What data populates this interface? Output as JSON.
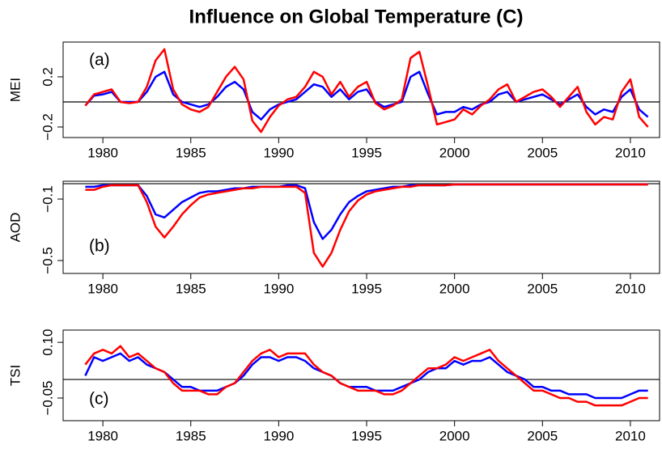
{
  "title": "Influence on Global Temperature (C)",
  "chart_data": [
    {
      "type": "line",
      "ylabel": "MEI",
      "annotation": "(a)",
      "x": [
        1979,
        1979.5,
        1980,
        1980.5,
        1981,
        1981.5,
        1982,
        1982.5,
        1983,
        1983.5,
        1984,
        1984.5,
        1985,
        1985.5,
        1986,
        1986.5,
        1987,
        1987.5,
        1988,
        1988.5,
        1989,
        1989.5,
        1990,
        1990.5,
        1991,
        1991.5,
        1992,
        1992.5,
        1993,
        1993.5,
        1994,
        1994.5,
        1995,
        1995.5,
        1996,
        1996.5,
        1997,
        1997.5,
        1998,
        1998.5,
        1999,
        1999.5,
        2000,
        2000.5,
        2001,
        2001.5,
        2002,
        2002.5,
        2003,
        2003.5,
        2004,
        2004.5,
        2005,
        2005.5,
        2006,
        2006.5,
        2007,
        2007.5,
        2008,
        2008.5,
        2009,
        2009.5,
        2010,
        2010.5,
        2011
      ],
      "series": [
        {
          "color": "#0000ff",
          "values": [
            -0.03,
            0.05,
            0.06,
            0.08,
            0,
            0,
            0,
            0.08,
            0.2,
            0.24,
            0.06,
            0,
            -0.02,
            -0.04,
            -0.02,
            0.04,
            0.12,
            0.16,
            0.1,
            -0.08,
            -0.14,
            -0.06,
            -0.02,
            0,
            0.02,
            0.08,
            0.14,
            0.12,
            0.04,
            0.1,
            0.02,
            0.08,
            0.1,
            0,
            -0.04,
            -0.02,
            0,
            0.2,
            0.24,
            0.06,
            -0.1,
            -0.08,
            -0.08,
            -0.04,
            -0.06,
            -0.02,
            0,
            0.06,
            0.08,
            0,
            0.02,
            0.04,
            0.06,
            0.02,
            -0.02,
            0.02,
            0.06,
            -0.04,
            -0.1,
            -0.06,
            -0.08,
            0.04,
            0.1,
            -0.06,
            -0.12
          ]
        },
        {
          "color": "#ff0000",
          "values": [
            -0.03,
            0.06,
            0.08,
            0.1,
            0,
            -0.01,
            0,
            0.12,
            0.33,
            0.42,
            0.1,
            -0.02,
            -0.06,
            -0.08,
            -0.04,
            0.08,
            0.2,
            0.28,
            0.18,
            -0.15,
            -0.24,
            -0.12,
            -0.03,
            0.02,
            0.04,
            0.12,
            0.24,
            0.2,
            0.06,
            0.16,
            0.04,
            0.12,
            0.16,
            -0.01,
            -0.06,
            -0.03,
            0.02,
            0.35,
            0.4,
            0.12,
            -0.18,
            -0.16,
            -0.14,
            -0.06,
            -0.1,
            -0.03,
            0.02,
            0.1,
            0.14,
            0,
            0.04,
            0.08,
            0.1,
            0.04,
            -0.04,
            0.04,
            0.12,
            -0.08,
            -0.18,
            -0.12,
            -0.14,
            0.08,
            0.18,
            -0.12,
            -0.2
          ]
        }
      ],
      "xlim": [
        1977.74,
        2011.66
      ],
      "xticks": [
        1980,
        1985,
        1990,
        1995,
        2000,
        2005,
        2010
      ],
      "ylim": [
        -0.284,
        0.477
      ],
      "yticks": [
        {
          "value": -0.2,
          "label": "−0.2"
        },
        0.2
      ]
    },
    {
      "type": "line",
      "ylabel": "AOD",
      "annotation": "(b)",
      "x": [
        1979,
        1979.5,
        1980,
        1980.5,
        1981,
        1981.5,
        1982,
        1982.5,
        1983,
        1983.5,
        1984,
        1984.5,
        1985,
        1985.5,
        1986,
        1986.5,
        1987,
        1987.5,
        1988,
        1988.5,
        1989,
        1989.5,
        1990,
        1990.5,
        1991,
        1991.5,
        1992,
        1992.5,
        1993,
        1993.5,
        1994,
        1994.5,
        1995,
        1995.5,
        1996,
        1996.5,
        1997,
        1997.5,
        1998,
        1998.5,
        1999,
        1999.5,
        2000,
        2000.5,
        2001,
        2001.5,
        2002,
        2002.5,
        2003,
        2003.5,
        2004,
        2004.5,
        2005,
        2005.5,
        2006,
        2006.5,
        2007,
        2007.5,
        2008,
        2008.5,
        2009,
        2009.5,
        2010,
        2010.5,
        2011
      ],
      "series": [
        {
          "color": "#0000ff",
          "values": [
            -0.02,
            -0.02,
            -0.01,
            -0.01,
            -0.01,
            -0.01,
            -0.01,
            -0.08,
            -0.2,
            -0.22,
            -0.17,
            -0.12,
            -0.09,
            -0.06,
            -0.05,
            -0.05,
            -0.04,
            -0.03,
            -0.03,
            -0.02,
            -0.02,
            -0.02,
            -0.02,
            -0.01,
            -0.01,
            -0.03,
            -0.25,
            -0.36,
            -0.3,
            -0.2,
            -0.12,
            -0.08,
            -0.05,
            -0.04,
            -0.03,
            -0.02,
            -0.02,
            -0.01,
            -0.01,
            -0.01,
            -0.01,
            -0.01,
            -0.005,
            -0.005,
            -0.005,
            -0.005,
            -0.005,
            -0.005,
            -0.005,
            -0.005,
            -0.005,
            -0.005,
            -0.005,
            -0.005,
            -0.005,
            -0.005,
            -0.005,
            -0.005,
            -0.005,
            -0.005,
            -0.005,
            -0.005,
            -0.005,
            -0.005,
            -0.005
          ]
        },
        {
          "color": "#ff0000",
          "values": [
            -0.04,
            -0.04,
            -0.02,
            -0.01,
            -0.01,
            -0.01,
            -0.01,
            -0.12,
            -0.28,
            -0.35,
            -0.28,
            -0.2,
            -0.14,
            -0.09,
            -0.07,
            -0.06,
            -0.05,
            -0.04,
            -0.03,
            -0.03,
            -0.02,
            -0.02,
            -0.02,
            -0.02,
            -0.02,
            -0.06,
            -0.45,
            -0.54,
            -0.45,
            -0.3,
            -0.18,
            -0.11,
            -0.07,
            -0.05,
            -0.04,
            -0.03,
            -0.02,
            -0.02,
            -0.01,
            -0.01,
            -0.01,
            -0.01,
            -0.005,
            -0.005,
            -0.005,
            -0.005,
            -0.005,
            -0.005,
            -0.005,
            -0.005,
            -0.005,
            -0.005,
            -0.005,
            -0.005,
            -0.005,
            -0.005,
            -0.005,
            -0.005,
            -0.005,
            -0.005,
            -0.005,
            -0.005,
            -0.005,
            -0.005,
            -0.005
          ]
        }
      ],
      "xlim": [
        1977.74,
        2011.66
      ],
      "xticks": [
        1980,
        1985,
        1990,
        1995,
        2000,
        2005,
        2010
      ],
      "ylim": [
        -0.584,
        0.016
      ],
      "yticks": [
        {
          "value": -0.5,
          "label": "−0.5"
        },
        {
          "value": -0.1,
          "label": "−0.1"
        }
      ]
    },
    {
      "type": "line",
      "ylabel": "TSI",
      "annotation": "(c)",
      "x": [
        1979,
        1979.5,
        1980,
        1980.5,
        1981,
        1981.5,
        1982,
        1982.5,
        1983,
        1983.5,
        1984,
        1984.5,
        1985,
        1985.5,
        1986,
        1986.5,
        1987,
        1987.5,
        1988,
        1988.5,
        1989,
        1989.5,
        1990,
        1990.5,
        1991,
        1991.5,
        1992,
        1992.5,
        1993,
        1993.5,
        1994,
        1994.5,
        1995,
        1995.5,
        1996,
        1996.5,
        1997,
        1997.5,
        1998,
        1998.5,
        1999,
        1999.5,
        2000,
        2000.5,
        2001,
        2001.5,
        2002,
        2002.5,
        2003,
        2003.5,
        2004,
        2004.5,
        2005,
        2005.5,
        2006,
        2006.5,
        2007,
        2007.5,
        2008,
        2008.5,
        2009,
        2009.5,
        2010,
        2010.5,
        2011
      ],
      "series": [
        {
          "color": "#0000ff",
          "values": [
            0.01,
            0.06,
            0.05,
            0.06,
            0.07,
            0.05,
            0.06,
            0.04,
            0.03,
            0.02,
            0,
            -0.02,
            -0.02,
            -0.03,
            -0.03,
            -0.03,
            -0.02,
            -0.01,
            0.01,
            0.04,
            0.06,
            0.06,
            0.05,
            0.06,
            0.06,
            0.05,
            0.03,
            0.02,
            0.01,
            -0.01,
            -0.02,
            -0.02,
            -0.02,
            -0.03,
            -0.03,
            -0.03,
            -0.02,
            -0.01,
            0,
            0.02,
            0.03,
            0.03,
            0.05,
            0.04,
            0.05,
            0.05,
            0.06,
            0.04,
            0.02,
            0.01,
            0,
            -0.02,
            -0.02,
            -0.03,
            -0.03,
            -0.04,
            -0.04,
            -0.04,
            -0.05,
            -0.05,
            -0.05,
            -0.05,
            -0.04,
            -0.03,
            -0.03
          ]
        },
        {
          "color": "#ff0000",
          "values": [
            0.04,
            0.07,
            0.08,
            0.07,
            0.09,
            0.06,
            0.07,
            0.05,
            0.03,
            0.02,
            -0.01,
            -0.03,
            -0.03,
            -0.03,
            -0.04,
            -0.04,
            -0.02,
            -0.01,
            0.02,
            0.05,
            0.07,
            0.08,
            0.06,
            0.07,
            0.07,
            0.07,
            0.04,
            0.02,
            0.01,
            -0.01,
            -0.02,
            -0.03,
            -0.03,
            -0.03,
            -0.04,
            -0.04,
            -0.03,
            -0.01,
            0.01,
            0.03,
            0.03,
            0.04,
            0.06,
            0.05,
            0.06,
            0.07,
            0.08,
            0.05,
            0.03,
            0.01,
            -0.01,
            -0.03,
            -0.03,
            -0.04,
            -0.05,
            -0.05,
            -0.06,
            -0.06,
            -0.07,
            -0.07,
            -0.07,
            -0.07,
            -0.06,
            -0.05,
            -0.05
          ]
        }
      ],
      "xlim": [
        1977.74,
        2011.66
      ],
      "xticks": [
        1980,
        1985,
        1990,
        1995,
        2000,
        2005,
        2010
      ],
      "ylim": [
        -0.111,
        0.133
      ],
      "yticks": [
        {
          "value": -0.05,
          "label": "−0.05"
        },
        {
          "value": 0.1,
          "label": "0.10"
        }
      ]
    }
  ]
}
